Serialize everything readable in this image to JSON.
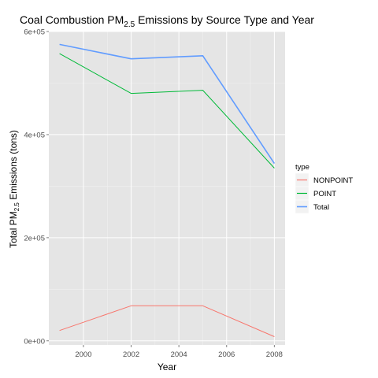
{
  "chart_data": {
    "type": "line",
    "title": {
      "prefix": "Coal Combustion PM",
      "subscript": "2.5",
      "suffix": " Emissions by Source Type and Year"
    },
    "xlabel": "Year",
    "ylabel": {
      "prefix": "Total PM",
      "subscript": "2.5",
      "suffix": " Emissions (tons)"
    },
    "x": [
      1999,
      2002,
      2005,
      2008
    ],
    "xlim": [
      1998.55,
      2008.45
    ],
    "ylim": [
      -8000,
      600000
    ],
    "x_ticks": [
      2000,
      2002,
      2004,
      2006,
      2008
    ],
    "x_tick_labels": [
      "2000",
      "2002",
      "2004",
      "2006",
      "2008"
    ],
    "y_ticks": [
      0,
      200000,
      400000,
      600000
    ],
    "y_tick_labels": [
      "0e+00",
      "2e+05",
      "4e+05",
      "6e+05"
    ],
    "grid": true,
    "legend": {
      "title": "type",
      "placement": "right"
    },
    "series": [
      {
        "name": "NONPOINT",
        "color": "#F8766D",
        "values": [
          20000,
          68000,
          68000,
          8000
        ]
      },
      {
        "name": "POINT",
        "color": "#00BA38",
        "values": [
          557000,
          480000,
          486000,
          335000
        ]
      },
      {
        "name": "Total",
        "color": "#619CFF",
        "values": [
          575000,
          547000,
          553000,
          344000
        ]
      }
    ]
  }
}
